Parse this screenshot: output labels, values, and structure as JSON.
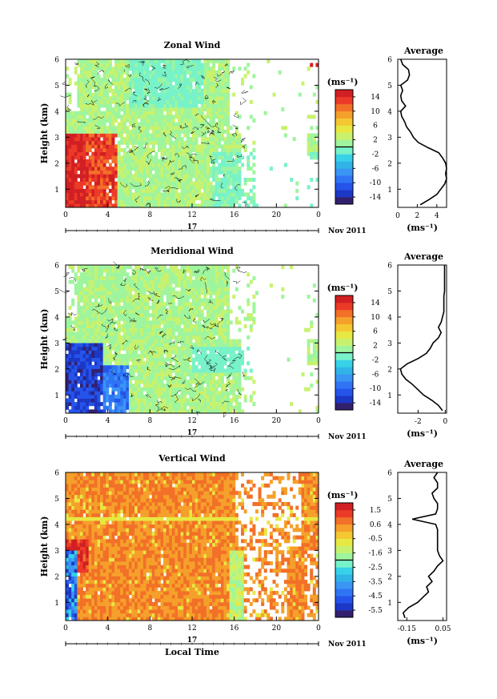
{
  "chart_data": [
    {
      "type": "heatmap",
      "title": "Zonal Wind",
      "ylabel": "Height (km)",
      "xlim": [
        0,
        24
      ],
      "ylim": [
        0.3,
        6
      ],
      "x_ticks": [
        "0",
        "4",
        "8",
        "12",
        "16",
        "20",
        "0"
      ],
      "y_ticks": [
        "1",
        "2",
        "3",
        "4",
        "5",
        "6"
      ],
      "date_day": "17",
      "date_month_year": "Nov 2011",
      "colorbar": {
        "unit": "(ms⁻¹)",
        "range": [
          -16,
          16
        ],
        "tick_labels": [
          "14",
          "10",
          "6",
          "2",
          "-2",
          "-6",
          "-10",
          "-14"
        ],
        "colors": [
          "#32206f",
          "#1d37c6",
          "#2554ea",
          "#2f74f5",
          "#3a95f5",
          "#30b4e7",
          "#37d2e8",
          "#78f2c8",
          "#9ef59e",
          "#c8f26e",
          "#e8e843",
          "#f5c832",
          "#f5a02a",
          "#f27028",
          "#ec3a28",
          "#d11f24"
        ]
      },
      "profile": {
        "title": "Average",
        "xlabel": "(ms⁻¹)",
        "x_ticks": [
          "0",
          "2",
          "4"
        ],
        "xlim": [
          0,
          5
        ],
        "heights": [
          0.4,
          0.6,
          0.8,
          1.0,
          1.2,
          1.4,
          1.6,
          1.8,
          2.0,
          2.2,
          2.4,
          2.6,
          2.8,
          3.0,
          3.2,
          3.4,
          3.6,
          3.8,
          4.0,
          4.2,
          4.4,
          4.6,
          4.8,
          5.0,
          5.2,
          5.4,
          5.6,
          5.8,
          6.0
        ],
        "values": [
          2.3,
          3.2,
          4.0,
          4.4,
          4.8,
          5.0,
          4.9,
          5.0,
          4.9,
          4.6,
          4.2,
          3.1,
          2.1,
          1.6,
          1.3,
          0.9,
          0.7,
          0.4,
          0.3,
          0.8,
          0.4,
          0.3,
          0.5,
          0.3,
          1.0,
          1.2,
          1.1,
          0.5,
          0.3
        ]
      }
    },
    {
      "type": "heatmap",
      "title": "Meridional Wind",
      "ylabel": "Height (km)",
      "xlim": [
        0,
        24
      ],
      "ylim": [
        0.3,
        6
      ],
      "x_ticks": [
        "0",
        "4",
        "8",
        "12",
        "16",
        "20",
        "0"
      ],
      "y_ticks": [
        "1",
        "2",
        "3",
        "4",
        "5",
        "6"
      ],
      "date_day": "17",
      "date_month_year": "Nov 2011",
      "colorbar": {
        "unit": "(ms⁻¹)",
        "range": [
          -16,
          16
        ],
        "tick_labels": [
          "14",
          "10",
          "6",
          "2",
          "-2",
          "-6",
          "-10",
          "-14"
        ],
        "colors": [
          "#32206f",
          "#1d37c6",
          "#2554ea",
          "#2f74f5",
          "#3a95f5",
          "#30b4e7",
          "#37d2e8",
          "#78f2c8",
          "#9ef59e",
          "#c8f26e",
          "#e8e843",
          "#f5c832",
          "#f5a02a",
          "#f27028",
          "#ec3a28",
          "#d11f24"
        ]
      },
      "profile": {
        "title": "Average",
        "xlabel": "(ms⁻¹)",
        "x_ticks": [
          "-2",
          "0"
        ],
        "xlim": [
          -3.5,
          0.1
        ],
        "heights": [
          0.4,
          0.6,
          0.8,
          1.0,
          1.2,
          1.4,
          1.6,
          1.8,
          2.0,
          2.2,
          2.4,
          2.6,
          2.8,
          3.0,
          3.2,
          3.4,
          3.6,
          3.8,
          4.0,
          4.2,
          4.4,
          4.6,
          4.8,
          5.0,
          5.2,
          5.4,
          5.6,
          5.8,
          6.0
        ],
        "values": [
          -0.2,
          -0.5,
          -1.0,
          -1.6,
          -2.0,
          -2.4,
          -2.9,
          -3.2,
          -3.3,
          -2.8,
          -2.0,
          -1.4,
          -1.1,
          -0.9,
          -0.5,
          -0.3,
          -0.5,
          -0.3,
          -0.2,
          -0.1,
          -0.1,
          -0.1,
          -0.1,
          -0.05,
          -0.05,
          -0.05,
          -0.05,
          -0.05,
          -0.05
        ]
      }
    },
    {
      "type": "heatmap",
      "title": "Vertical Wind",
      "ylabel": "Height (km)",
      "xlabel": "Local Time",
      "xlim": [
        0,
        24
      ],
      "ylim": [
        0.3,
        6
      ],
      "x_ticks": [
        "0",
        "4",
        "8",
        "12",
        "16",
        "20",
        "0"
      ],
      "y_ticks": [
        "1",
        "2",
        "3",
        "4",
        "5",
        "6"
      ],
      "date_day": "17",
      "date_month_year": "Nov 2011",
      "colorbar": {
        "unit": "(ms⁻¹)",
        "range": [
          -6,
          2
        ],
        "tick_labels": [
          "1.5",
          "0.6",
          "-0.5",
          "-1.6",
          "-2.5",
          "-3.5",
          "-4.5",
          "-5.5"
        ],
        "colors": [
          "#32206f",
          "#1d37c6",
          "#2554ea",
          "#2f74f5",
          "#3a95f5",
          "#30b4e7",
          "#37d2e8",
          "#78f2c8",
          "#9ef59e",
          "#c8f26e",
          "#e8e843",
          "#f5c832",
          "#f5a02a",
          "#f27028",
          "#ec3a28",
          "#d11f24"
        ]
      },
      "profile": {
        "title": "Average",
        "xlabel": "(ms⁻¹)",
        "x_ticks": [
          "-0.15",
          "0.05"
        ],
        "xlim": [
          -0.2,
          0.07
        ],
        "heights": [
          0.4,
          0.6,
          0.8,
          1.0,
          1.2,
          1.4,
          1.6,
          1.8,
          2.0,
          2.2,
          2.4,
          2.6,
          2.8,
          3.0,
          3.2,
          3.4,
          3.6,
          3.8,
          4.0,
          4.2,
          4.4,
          4.6,
          4.8,
          5.0,
          5.2,
          5.4,
          5.6,
          5.8,
          6.0
        ],
        "values": [
          -0.16,
          -0.17,
          -0.14,
          -0.09,
          -0.06,
          -0.03,
          -0.04,
          -0.01,
          -0.03,
          0.0,
          0.02,
          0.05,
          0.03,
          0.02,
          0.02,
          0.02,
          0.02,
          0.02,
          0.01,
          -0.12,
          0.01,
          0.02,
          0.02,
          0.0,
          -0.01,
          0.02,
          0.02,
          0.0,
          0.02
        ]
      }
    }
  ]
}
